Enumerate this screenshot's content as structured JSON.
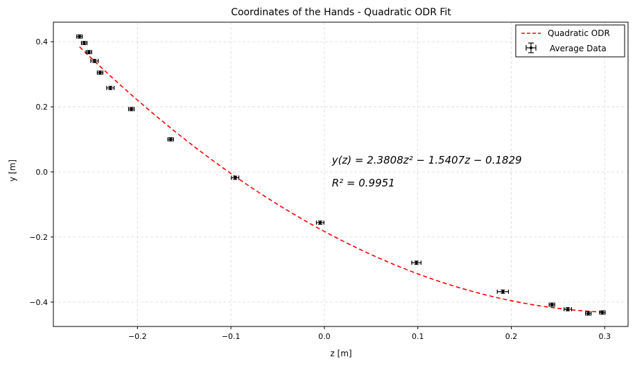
{
  "chart_data": {
    "type": "scatter",
    "title": "Coordinates of the Hands - Quadratic ODR Fit",
    "xlabel": "z [m]",
    "ylabel": "y [m]",
    "xlim": [
      -0.29,
      0.325
    ],
    "ylim": [
      -0.475,
      0.46
    ],
    "xticks": [
      -0.2,
      -0.1,
      0.0,
      0.1,
      0.2,
      0.3
    ],
    "yticks": [
      -0.4,
      -0.2,
      0.0,
      0.2,
      0.4
    ],
    "xtick_labels": [
      "−0.2",
      "−0.1",
      "0.0",
      "0.1",
      "0.2",
      "0.3"
    ],
    "ytick_labels": [
      "−0.4",
      "−0.2",
      "0.0",
      "0.2",
      "0.4"
    ],
    "grid": true,
    "legend_position": "top-right",
    "series": [
      {
        "name": "Average Data",
        "kind": "errorbar",
        "color": "#000000",
        "x": [
          -0.262,
          -0.257,
          -0.252,
          -0.246,
          -0.24,
          -0.229,
          -0.2065,
          -0.1645,
          -0.0955,
          -0.0045,
          0.0985,
          0.191,
          0.2435,
          0.2605,
          0.2825,
          0.2975
        ],
        "y": [
          0.416,
          0.396,
          0.368,
          0.341,
          0.305,
          0.258,
          0.193,
          0.1,
          -0.018,
          -0.156,
          -0.279,
          -0.368,
          -0.408,
          -0.422,
          -0.435,
          -0.432
        ],
        "xerr": [
          0.003,
          0.003,
          0.003,
          0.004,
          0.003,
          0.004,
          0.003,
          0.003,
          0.004,
          0.004,
          0.005,
          0.006,
          0.003,
          0.004,
          0.003,
          0.003
        ],
        "yerr": [
          0.005,
          0.005,
          0.005,
          0.005,
          0.005,
          0.005,
          0.005,
          0.005,
          0.005,
          0.005,
          0.005,
          0.005,
          0.005,
          0.005,
          0.005,
          0.005
        ]
      },
      {
        "name": "Quadratic ODR",
        "kind": "fit-line",
        "color": "#ff0000",
        "line_style": "dashed",
        "coefficients": [
          2.3808,
          -1.5407,
          -0.1829
        ],
        "x_range": [
          -0.262,
          0.2975
        ]
      }
    ],
    "annotations": [
      {
        "text": "y(z) = 2.3808z² − 1.5407z − 0.1829",
        "x": 0.008,
        "y": 0.025
      },
      {
        "text": "R² = 0.9951",
        "x": 0.008,
        "y": -0.045
      }
    ]
  }
}
